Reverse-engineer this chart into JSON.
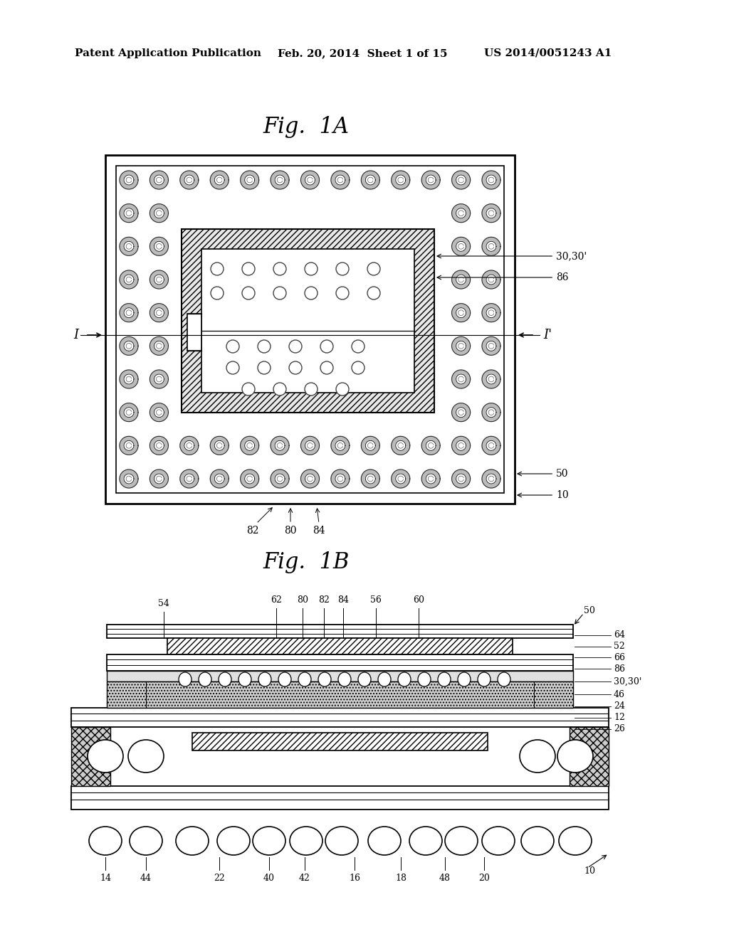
{
  "bg_color": "#ffffff",
  "header_left": "Patent Application Publication",
  "header_mid": "Feb. 20, 2014  Sheet 1 of 15",
  "header_right": "US 2014/0051243 A1",
  "fig1a_title": "Fig.  1A",
  "fig1b_title": "Fig.  1B"
}
